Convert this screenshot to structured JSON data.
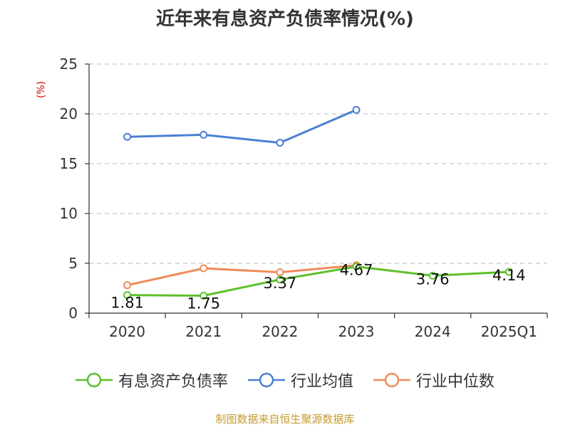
{
  "chart_data": {
    "type": "line",
    "title": "近年来有息资产负债率情况(%)",
    "ylabel": "(%)",
    "xlabel": "",
    "categories": [
      "2020",
      "2021",
      "2022",
      "2023",
      "2024",
      "2025Q1"
    ],
    "ylim": [
      0,
      25
    ],
    "yticks": [
      0,
      5,
      10,
      15,
      20,
      25
    ],
    "grid": true,
    "legend_position": "bottom",
    "series": [
      {
        "name": "有息资产负债率",
        "color": "#5cc02a",
        "values": [
          1.81,
          1.75,
          3.37,
          4.67,
          3.76,
          4.14
        ],
        "show_labels": true
      },
      {
        "name": "行业均值",
        "color": "#4a7fd6",
        "values": [
          17.7,
          17.9,
          17.1,
          20.4,
          null,
          null
        ],
        "show_labels": false
      },
      {
        "name": "行业中位数",
        "color": "#f08b5a",
        "values": [
          2.8,
          4.5,
          4.1,
          4.8,
          null,
          null
        ],
        "show_labels": false
      }
    ]
  },
  "colors": {
    "ylabel": "#cc0000",
    "source": "#c79a2a"
  },
  "source": "制图数据来自恒生聚源数据库"
}
